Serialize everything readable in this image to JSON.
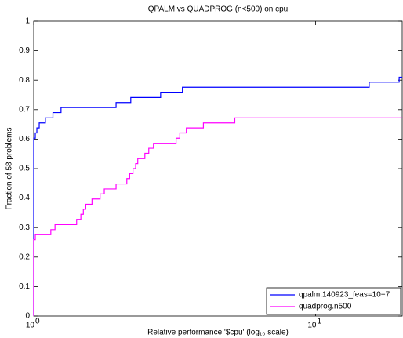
{
  "chart_data": {
    "type": "step",
    "title": "QPALM vs QUADPROG (n<500) on cpu",
    "xlabel": "Relative performance '$cpu' (log₁₀ scale)",
    "ylabel": "Fraction of 58 problems",
    "xscale": "log",
    "xlim": [
      1,
      20.3
    ],
    "xticks": [
      {
        "value": 1,
        "label": "10",
        "exponent": "0"
      },
      {
        "value": 10,
        "label": "10",
        "exponent": "1"
      }
    ],
    "ylim": [
      0,
      1
    ],
    "yticks": [
      0,
      0.1,
      0.2,
      0.3,
      0.4,
      0.5,
      0.6,
      0.7,
      0.8,
      0.9,
      1
    ],
    "legend": "lower right",
    "series": [
      {
        "name": "qpalm.140923_feas=10−7",
        "color": "#0000ff",
        "x": [
          1,
          1.013,
          1.026,
          1.046,
          1.1,
          1.17,
          1.25,
          1.96,
          2.21,
          2.82,
          3.37,
          15.5,
          19.8
        ],
        "values": [
          0.603,
          0.621,
          0.638,
          0.655,
          0.672,
          0.69,
          0.707,
          0.724,
          0.741,
          0.759,
          0.776,
          0.793,
          0.81
        ]
      },
      {
        "name": "quadprog.n500",
        "color": "#ff00ff",
        "x": [
          1,
          1.013,
          1.15,
          1.19,
          1.42,
          1.47,
          1.5,
          1.53,
          1.61,
          1.72,
          1.78,
          1.96,
          2.14,
          2.19,
          2.25,
          2.3,
          2.34,
          2.48,
          2.56,
          2.66,
          3.2,
          3.3,
          3.48,
          4.0,
          5.17
        ],
        "values": [
          0.259,
          0.276,
          0.293,
          0.31,
          0.328,
          0.345,
          0.362,
          0.379,
          0.397,
          0.414,
          0.431,
          0.448,
          0.466,
          0.483,
          0.5,
          0.517,
          0.534,
          0.552,
          0.569,
          0.586,
          0.603,
          0.621,
          0.638,
          0.655,
          0.672
        ]
      }
    ]
  }
}
